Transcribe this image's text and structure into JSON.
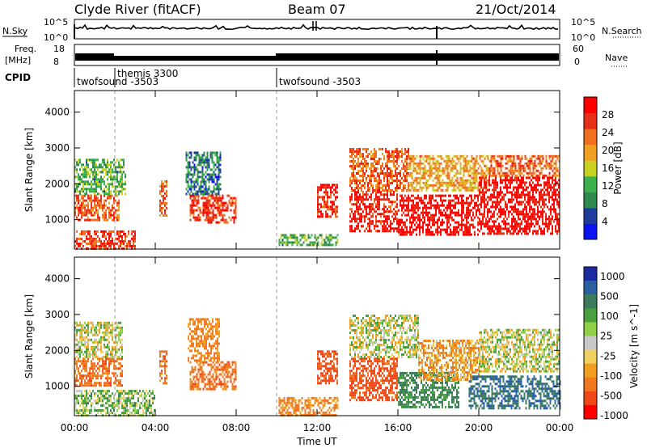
{
  "header": {
    "station": "Clyde River (fitACF)",
    "beam": "Beam 07",
    "date": "21/Oct/2014"
  },
  "status_panel": {
    "nsky_label": "N.Sky",
    "nsky_ticks": [
      "10^5",
      "10^0"
    ],
    "nsearch_label": "N.Search",
    "nsearch_ticks": [
      "10^5",
      "10^0"
    ],
    "freq_label_line1": "Freq.",
    "freq_label_line2": "[MHz]",
    "freq_ticks": [
      "18",
      "8"
    ],
    "nave_label": "Nave",
    "nave_ticks": [
      "60",
      "0"
    ],
    "cpid_label": "CPID",
    "cpid_segments": [
      {
        "start_hour": 0.0,
        "label": "twofsound -3503"
      },
      {
        "start_hour": 2.0,
        "label": "themis 3300"
      },
      {
        "start_hour": 10.0,
        "label": "twofsound -3503"
      }
    ]
  },
  "x_axis": {
    "label": "Time UT",
    "ticks": [
      "00:00",
      "04:00",
      "08:00",
      "12:00",
      "16:00",
      "20:00",
      "00:00"
    ],
    "range_hours": [
      0,
      24
    ]
  },
  "colors": {
    "power_scale": [
      "#0a14f0",
      "#1e3c9c",
      "#2f8a50",
      "#3cb04a",
      "#c8d020",
      "#f0a020",
      "#f07020",
      "#e83018",
      "#ff0000"
    ],
    "velocity_scale": [
      "#1a2aa0",
      "#2a60a0",
      "#3c7c5a",
      "#48a040",
      "#8ed048",
      "#c8c8c8",
      "#f0d060",
      "#f0a020",
      "#f07820",
      "#f04818",
      "#ff0000"
    ]
  },
  "chart_data": [
    {
      "type": "heatmap",
      "title": "Power",
      "ylabel": "Slant Range [km]",
      "ylim": [
        180,
        4600
      ],
      "yticks": [
        1000,
        2000,
        3000,
        4000
      ],
      "colorbar": {
        "label": "Power [dB]",
        "range": [
          0,
          32
        ],
        "ticks": [
          4,
          8,
          12,
          16,
          20,
          24,
          28
        ]
      },
      "regions": [
        {
          "t": [
            0.0,
            3.0
          ],
          "r": [
            200,
            700
          ],
          "value": 26
        },
        {
          "t": [
            0.0,
            2.2
          ],
          "r": [
            1000,
            1700
          ],
          "value": 24
        },
        {
          "t": [
            0.0,
            2.5
          ],
          "r": [
            1700,
            2700
          ],
          "value": 12
        },
        {
          "t": [
            4.2,
            4.6
          ],
          "r": [
            1100,
            2100
          ],
          "value": 24
        },
        {
          "t": [
            5.7,
            6.9
          ],
          "r": [
            1000,
            1700
          ],
          "value": 26
        },
        {
          "t": [
            5.5,
            7.2
          ],
          "r": [
            1700,
            2900
          ],
          "value": 8
        },
        {
          "t": [
            6.5,
            8.0
          ],
          "r": [
            900,
            1700
          ],
          "value": 26
        },
        {
          "t": [
            10.1,
            13.0
          ],
          "r": [
            300,
            600
          ],
          "value": 12
        },
        {
          "t": [
            12.0,
            13.0
          ],
          "r": [
            1100,
            2000
          ],
          "value": 28
        },
        {
          "t": [
            13.6,
            16.0
          ],
          "r": [
            700,
            1800
          ],
          "value": 28
        },
        {
          "t": [
            13.6,
            16.5
          ],
          "r": [
            1800,
            3000
          ],
          "value": 24
        },
        {
          "t": [
            16.0,
            20.0
          ],
          "r": [
            600,
            1700
          ],
          "value": 30
        },
        {
          "t": [
            16.5,
            20.5
          ],
          "r": [
            1800,
            2800
          ],
          "value": 20
        },
        {
          "t": [
            20.0,
            24.0
          ],
          "r": [
            600,
            2200
          ],
          "value": 30
        },
        {
          "t": [
            20.5,
            24.0
          ],
          "r": [
            2200,
            2800
          ],
          "value": 24
        }
      ]
    },
    {
      "type": "heatmap",
      "title": "Velocity",
      "ylabel": "Slant Range [km]",
      "ylim": [
        180,
        4600
      ],
      "yticks": [
        1000,
        2000,
        3000,
        4000
      ],
      "colorbar": {
        "label": "Velocity [m s^-1]",
        "ticks": [
          "1000",
          "500",
          "100",
          "25",
          "-25",
          "-100",
          "-500",
          "-1000"
        ]
      },
      "regions": [
        {
          "t": [
            0.0,
            4.0
          ],
          "r": [
            200,
            900
          ],
          "value": 100
        },
        {
          "t": [
            0.0,
            2.4
          ],
          "r": [
            1000,
            1800
          ],
          "value": -400
        },
        {
          "t": [
            0.0,
            2.4
          ],
          "r": [
            1800,
            2800
          ],
          "value": 0
        },
        {
          "t": [
            4.2,
            4.6
          ],
          "r": [
            1100,
            2000
          ],
          "value": -400
        },
        {
          "t": [
            5.7,
            8.0
          ],
          "r": [
            900,
            1700
          ],
          "value": -400
        },
        {
          "t": [
            5.6,
            7.2
          ],
          "r": [
            1700,
            2900
          ],
          "value": -300
        },
        {
          "t": [
            10.1,
            13.0
          ],
          "r": [
            200,
            700
          ],
          "value": -300
        },
        {
          "t": [
            12.0,
            13.0
          ],
          "r": [
            1100,
            2000
          ],
          "value": -600
        },
        {
          "t": [
            13.6,
            16.0
          ],
          "r": [
            600,
            1800
          ],
          "value": -600
        },
        {
          "t": [
            13.6,
            17.0
          ],
          "r": [
            1800,
            3000
          ],
          "value": 0
        },
        {
          "t": [
            16.0,
            19.0
          ],
          "r": [
            400,
            1400
          ],
          "value": 300
        },
        {
          "t": [
            17.0,
            20.0
          ],
          "r": [
            1200,
            2300
          ],
          "value": -200
        },
        {
          "t": [
            19.5,
            24.0
          ],
          "r": [
            400,
            1300
          ],
          "value": 500
        },
        {
          "t": [
            20.0,
            24.0
          ],
          "r": [
            1400,
            2600
          ],
          "value": 0
        }
      ]
    }
  ]
}
